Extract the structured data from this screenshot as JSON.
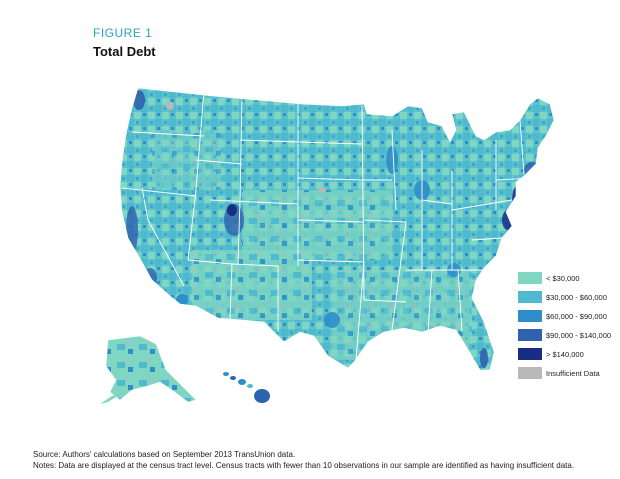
{
  "figure": {
    "label": "FIGURE 1",
    "title": "Total Debt"
  },
  "map": {
    "region": "United States (census tracts)",
    "states_highlighted_dark": [
      "Washington DC metro",
      "Northeast corridor",
      "Colorado Front Range",
      "California coast"
    ]
  },
  "legend": {
    "items": [
      {
        "label": "< $30,000",
        "color": "#7fd6c2"
      },
      {
        "label": "$30,000 - $60,000",
        "color": "#4fb9cf"
      },
      {
        "label": "$60,000 - $90,000",
        "color": "#2e8ec9"
      },
      {
        "label": "$90,000 - $140,000",
        "color": "#2f62ad"
      },
      {
        "label": "> $140,000",
        "color": "#1a2d84"
      },
      {
        "label": "Insufficient Data",
        "color": "#b9b9b9"
      }
    ]
  },
  "footer": {
    "source": "Source: Authors' calculations based on September 2013 TransUnion data.",
    "notes": "Notes: Data are displayed at the census tract level. Census tracts with fewer than 10 observations in our sample are identified as having insufficient data."
  }
}
